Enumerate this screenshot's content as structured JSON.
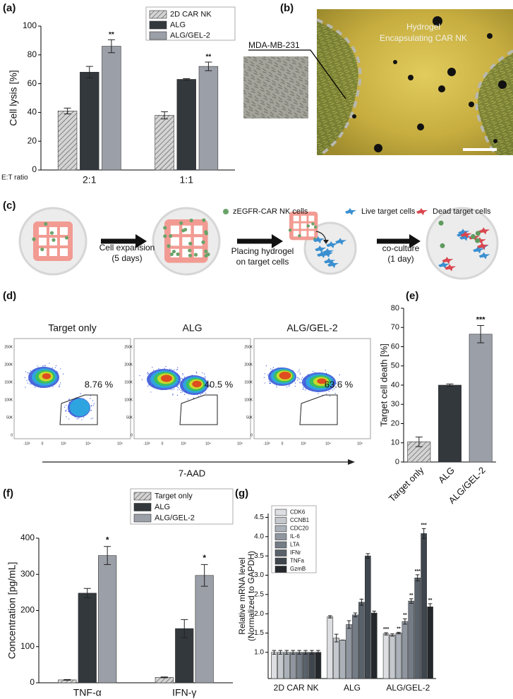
{
  "panels": {
    "b": {
      "label": "(b)",
      "inset_label": "MDA-MB-231",
      "caption": [
        "Hydrogel",
        "Encapsulating CAR NK"
      ]
    },
    "c": {
      "label": "(c)",
      "legend": [
        "zEGFR-CAR NK cells",
        "Live target cells",
        "Dead target cells"
      ],
      "steps": [
        [
          "Cell expansion",
          "(5 days)"
        ],
        [
          "Placing hydrogel",
          "on target cells"
        ],
        [
          "co-culture",
          "(1 day)"
        ]
      ]
    },
    "d": {
      "label": "(d)",
      "plots": [
        {
          "title": "Target only",
          "gate": "8.76 %"
        },
        {
          "title": "ALG",
          "gate": "40.5 %"
        },
        {
          "title": "ALG/GEL-2",
          "gate": "63.6 %"
        }
      ],
      "y_ticks": [
        "250K",
        "200K",
        "150K",
        "100K",
        "50K",
        "0"
      ],
      "x_ticks": [
        "-10³",
        "0",
        "10³",
        "10⁴",
        "10⁵"
      ],
      "x_label": "7-AAD"
    }
  },
  "chart_data": [
    {
      "label": "(a)",
      "type": "bar",
      "y_label": "Cell lysis [%]",
      "x_label": "E:T ratio",
      "categories": [
        "2:1",
        "1:1"
      ],
      "series": [
        {
          "name": "2D CAR NK",
          "color": "#d4d4d4",
          "pattern": "hatch",
          "values": [
            41,
            38
          ],
          "errors": [
            2,
            2.5
          ]
        },
        {
          "name": "ALG",
          "color": "#33383d",
          "pattern": "solid",
          "values": [
            68,
            63
          ],
          "errors": [
            4,
            0.5
          ]
        },
        {
          "name": "ALG/GEL-2",
          "color": "#9b9fa8",
          "pattern": "solid",
          "values": [
            86,
            72
          ],
          "errors": [
            4.5,
            3
          ],
          "annotations": [
            "**",
            "**"
          ]
        }
      ],
      "ylim": [
        0,
        100
      ],
      "yticks": [
        0,
        20,
        40,
        60,
        80,
        100
      ],
      "legend": "top-right"
    },
    {
      "label": "(e)",
      "type": "bar",
      "y_label": "Target cell death [%]",
      "categories": [
        "Target only",
        "ALG",
        "ALG/GEL-2"
      ],
      "values": [
        10.5,
        40,
        66.5
      ],
      "errors": [
        2.5,
        0.6,
        4.5
      ],
      "colors": [
        "#d4d4d4",
        "#33383d",
        "#9b9fa8"
      ],
      "patterns": [
        "hatch",
        "solid",
        "solid"
      ],
      "annotations": [
        null,
        null,
        "***"
      ],
      "ylim": [
        0,
        80
      ],
      "yticks": [
        0,
        10,
        20,
        30,
        40,
        50,
        60,
        70,
        80
      ]
    },
    {
      "label": "(f)",
      "type": "bar",
      "y_label": "Concentration [pg/mL]",
      "categories": [
        "TNF-α",
        "IFN-γ"
      ],
      "series": [
        {
          "name": "Target only",
          "color": "#d4d4d4",
          "pattern": "hatch",
          "values": [
            8,
            15
          ],
          "errors": [
            1,
            1
          ]
        },
        {
          "name": "ALG",
          "color": "#33383d",
          "pattern": "solid",
          "values": [
            248,
            150
          ],
          "errors": [
            13,
            25
          ]
        },
        {
          "name": "ALG/GEL-2",
          "color": "#9b9fa8",
          "pattern": "solid",
          "values": [
            352,
            297
          ],
          "errors": [
            25,
            30
          ],
          "annotations": [
            "*",
            "*"
          ]
        }
      ],
      "ylim": [
        0,
        400
      ],
      "yticks": [
        0,
        100,
        200,
        300,
        400
      ],
      "legend": "top-right"
    },
    {
      "label": "(g)",
      "type": "bar",
      "y_label": [
        "Relative mRNA level",
        "(Normalized to GAPDH)"
      ],
      "categories": [
        "2D CAR NK",
        "ALG",
        "ALG/GEL-2"
      ],
      "series": [
        {
          "name": "CDK6",
          "color": "#dcdee1",
          "pattern": "solid",
          "values": [
            1.0,
            1.92,
            1.48
          ],
          "errors": [
            0.05,
            0.03,
            0.03
          ],
          "annotations": [
            null,
            null,
            "***"
          ]
        },
        {
          "name": "CCNB1",
          "color": "#c5c9ce",
          "pattern": "solid",
          "values": [
            1.0,
            1.37,
            1.45
          ],
          "errors": [
            0.05,
            0.1,
            0.03
          ]
        },
        {
          "name": "CDC20",
          "color": "#abb1b8",
          "pattern": "solid",
          "values": [
            1.0,
            1.32,
            1.5
          ],
          "errors": [
            0.05,
            0.0,
            0.02
          ],
          "annotations": [
            null,
            null,
            "**"
          ]
        },
        {
          "name": "IL-6",
          "color": "#8f969f",
          "pattern": "solid",
          "values": [
            1.0,
            1.72,
            1.8
          ],
          "errors": [
            0.05,
            0.1,
            0.07
          ],
          "annotations": [
            null,
            null,
            "**"
          ]
        },
        {
          "name": "LTA",
          "color": "#747c86",
          "pattern": "solid",
          "values": [
            1.0,
            1.97,
            2.33
          ],
          "errors": [
            0.05,
            0.05,
            0.06
          ],
          "annotations": [
            null,
            null,
            "**"
          ]
        },
        {
          "name": "IFNr",
          "color": "#59616b",
          "pattern": "solid",
          "values": [
            1.0,
            2.3,
            2.93
          ],
          "errors": [
            0.05,
            0.08,
            0.08
          ],
          "annotations": [
            null,
            null,
            "***"
          ]
        },
        {
          "name": "TNFa",
          "color": "#3f464e",
          "pattern": "solid",
          "values": [
            1.0,
            3.5,
            4.08
          ],
          "errors": [
            0.05,
            0.06,
            0.13
          ],
          "annotations": [
            null,
            null,
            "***"
          ]
        },
        {
          "name": "GzmB",
          "color": "#24282d",
          "pattern": "solid",
          "values": [
            1.0,
            2.02,
            2.18
          ],
          "errors": [
            0.05,
            0.05,
            0.08
          ],
          "annotations": [
            null,
            null,
            "**"
          ]
        }
      ],
      "ylim": [
        0.32,
        4.6
      ],
      "yticks": [
        {
          "value": 1,
          "label": "1.0"
        },
        1.5,
        {
          "value": 2,
          "label": "2.0"
        },
        2.5,
        {
          "value": 3,
          "label": "3.0"
        },
        3.5,
        {
          "value": 4,
          "label": "4.0"
        },
        4.5
      ],
      "legend": "top-left"
    }
  ]
}
